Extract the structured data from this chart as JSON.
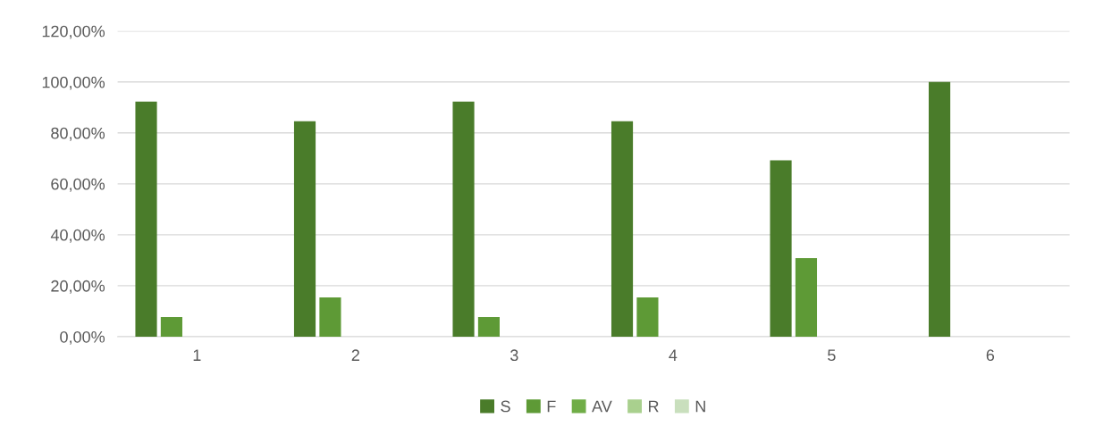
{
  "chart_data": {
    "type": "bar",
    "categories": [
      "1",
      "2",
      "3",
      "4",
      "5",
      "6"
    ],
    "series": [
      {
        "name": "S",
        "color": "#4a7c2a",
        "values": [
          92.3,
          84.6,
          92.3,
          84.6,
          69.2,
          100
        ]
      },
      {
        "name": "F",
        "color": "#5e9a36",
        "values": [
          7.7,
          15.4,
          7.7,
          15.4,
          30.8,
          null
        ]
      },
      {
        "name": "AV",
        "color": "#70ad47",
        "values": [
          null,
          null,
          null,
          null,
          null,
          null
        ]
      },
      {
        "name": "R",
        "color": "#a9d08e",
        "values": [
          null,
          null,
          null,
          null,
          null,
          null
        ]
      },
      {
        "name": "N",
        "color": "#c9dfbd",
        "values": [
          null,
          null,
          null,
          null,
          null,
          null
        ]
      }
    ],
    "ylim": [
      0,
      120
    ],
    "yticks": [
      {
        "value": 0,
        "label": "0,00%"
      },
      {
        "value": 20,
        "label": "20,00%"
      },
      {
        "value": 40,
        "label": "40,00%"
      },
      {
        "value": 60,
        "label": "60,00%"
      },
      {
        "value": 80,
        "label": "80,00%"
      },
      {
        "value": 100,
        "label": "100,00%"
      },
      {
        "value": 120,
        "label": "120,00%"
      }
    ],
    "grid": "y",
    "legend": "bottom"
  }
}
